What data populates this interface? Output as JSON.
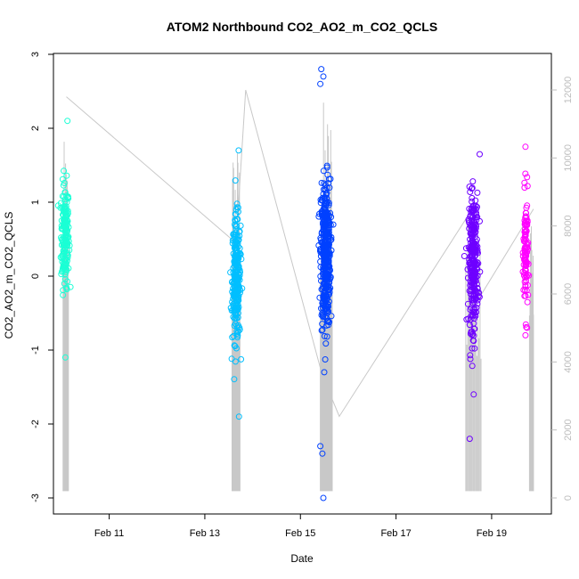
{
  "chart_data": {
    "type": "scatter",
    "title": "ATOM2 Northbound CO2_AO2_m_CO2_QCLS",
    "xlabel": "Date",
    "ylabel": "CO2_AO2_m_CO2_QCLS",
    "xlim": [
      "2014-02-09T20:00",
      "2014-02-20T06:00"
    ],
    "ylim": [
      -3,
      3
    ],
    "y2lim": [
      0,
      12000
    ],
    "x_ticks": [
      {
        "date": "2014-02-11",
        "label": "Feb 11"
      },
      {
        "date": "2014-02-13",
        "label": "Feb 13"
      },
      {
        "date": "2014-02-15",
        "label": "Feb 15"
      },
      {
        "date": "2014-02-17",
        "label": "Feb 17"
      },
      {
        "date": "2014-02-19",
        "label": "Feb 19"
      }
    ],
    "y_ticks": [
      -3,
      -2,
      -1,
      0,
      1,
      2,
      3
    ],
    "y2_ticks": [
      0,
      2000,
      4000,
      6000,
      8000,
      10000,
      12000
    ],
    "grid": false,
    "legend": "none",
    "series": [
      {
        "color": "#1affd5",
        "center": "2014-02-10T01:50",
        "x_spread_hours": 2.5,
        "mean": 0.55,
        "sd": 0.35,
        "n": 180,
        "outliers": [
          {
            "x": "2014-02-10T03:00",
            "y": 2.1
          },
          {
            "x": "2014-02-10T02:00",
            "y": -1.1
          }
        ]
      },
      {
        "color": "#00bfff",
        "center": "2014-02-13T15:50",
        "x_spread_hours": 2.6,
        "mean": -0.05,
        "sd": 0.42,
        "n": 260,
        "outliers": [
          {
            "x": "2014-02-13T17:00",
            "y": 1.7
          },
          {
            "x": "2014-02-13T17:10",
            "y": -1.9
          }
        ]
      },
      {
        "color": "#0041ff",
        "center": "2014-02-15T12:40",
        "x_spread_hours": 3.0,
        "mean": 0.3,
        "sd": 0.5,
        "n": 420,
        "outliers": [
          {
            "x": "2014-02-15T10:30",
            "y": 2.8
          },
          {
            "x": "2014-02-15T10:00",
            "y": 2.6
          },
          {
            "x": "2014-02-15T11:30",
            "y": 2.7
          },
          {
            "x": "2014-02-15T11:30",
            "y": -3.0
          },
          {
            "x": "2014-02-15T11:00",
            "y": -2.4
          },
          {
            "x": "2014-02-15T10:00",
            "y": -2.3
          }
        ]
      },
      {
        "color": "#6e00ff",
        "center": "2014-02-18T14:50",
        "x_spread_hours": 3.0,
        "mean": 0.2,
        "sd": 0.45,
        "n": 300,
        "outliers": [
          {
            "x": "2014-02-18T13:00",
            "y": -2.2
          },
          {
            "x": "2014-02-18T15:00",
            "y": -1.6
          },
          {
            "x": "2014-02-18T18:00",
            "y": 1.65
          }
        ]
      },
      {
        "color": "#ff00ff",
        "center": "2014-02-19T17:10",
        "x_spread_hours": 1.4,
        "mean": 0.3,
        "sd": 0.4,
        "n": 110,
        "outliers": [
          {
            "x": "2014-02-19T17:00",
            "y": 1.75
          },
          {
            "x": "2014-02-19T17:00",
            "y": -0.8
          }
        ]
      }
    ],
    "secondary_line": {
      "color": "#c8c8c8",
      "y2_axis": true,
      "points": [
        {
          "x": "2014-02-10T02:30",
          "y2": 11800
        },
        {
          "x": "2014-02-13T15:40",
          "y2": 7500
        },
        {
          "x": "2014-02-13T20:30",
          "y2": 12000
        },
        {
          "x": "2014-02-15T11:00",
          "y2": 3600
        },
        {
          "x": "2014-02-15T19:30",
          "y2": 2400
        },
        {
          "x": "2014-02-18T11:00",
          "y2": 8200
        },
        {
          "x": "2014-02-18T19:00",
          "y2": 6000
        },
        {
          "x": "2014-02-19T21:00",
          "y2": 8500
        }
      ],
      "spike_clusters": [
        {
          "start": "2014-02-10T00:50",
          "end": "2014-02-10T03:30",
          "low": 200,
          "high": 10500
        },
        {
          "start": "2014-02-13T13:40",
          "end": "2014-02-13T17:40",
          "low": 200,
          "high": 10600
        },
        {
          "start": "2014-02-15T10:00",
          "end": "2014-02-15T16:00",
          "low": 200,
          "high": 11800
        },
        {
          "start": "2014-02-18T11:00",
          "end": "2014-02-18T18:40",
          "low": 200,
          "high": 8800
        },
        {
          "start": "2014-02-19T19:00",
          "end": "2014-02-19T21:00",
          "low": 200,
          "high": 8700
        }
      ]
    }
  }
}
